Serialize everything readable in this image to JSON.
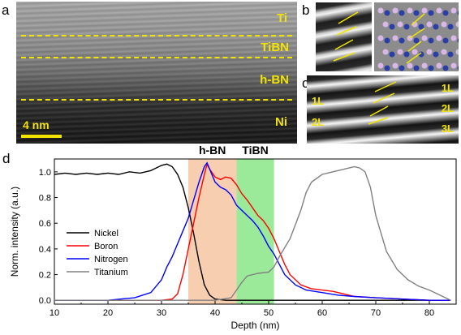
{
  "panels": {
    "a": {
      "letter": "a",
      "layers": [
        "Ti",
        "TiBN",
        "h-BN",
        "Ni"
      ],
      "scale_bar": "4 nm"
    },
    "b": {
      "letter": "b"
    },
    "c": {
      "letter": "c",
      "left_labels": [
        "1L",
        "2L"
      ],
      "right_labels": [
        "1L",
        "2L",
        "3L"
      ]
    },
    "d": {
      "letter": "d"
    }
  },
  "chart_data": {
    "type": "line",
    "title": "",
    "xlabel": "Depth (nm)",
    "ylabel": "Norm. intensity (a.u.)",
    "xlim": [
      10,
      85
    ],
    "ylim": [
      -0.03,
      1.1
    ],
    "xticks": [
      10,
      20,
      30,
      40,
      50,
      60,
      70,
      80
    ],
    "yticks": [
      0.0,
      0.2,
      0.4,
      0.6,
      0.8,
      1.0
    ],
    "region_labels": [
      {
        "text": "h-BN",
        "x_range": [
          35,
          44
        ],
        "color": "#f7c9a8"
      },
      {
        "text": "TiBN",
        "x_range": [
          44,
          51
        ],
        "color": "#8fe88f"
      }
    ],
    "legend_position": "bottom-left",
    "series": [
      {
        "name": "Nickel",
        "color": "#000000",
        "points": [
          [
            10,
            0.98
          ],
          [
            12,
            0.99
          ],
          [
            14,
            0.98
          ],
          [
            16,
            0.99
          ],
          [
            18,
            0.98
          ],
          [
            20,
            0.99
          ],
          [
            22,
            0.98
          ],
          [
            24,
            1.0
          ],
          [
            26,
            0.99
          ],
          [
            28,
            1.01
          ],
          [
            29,
            1.03
          ],
          [
            30,
            1.05
          ],
          [
            31,
            1.06
          ],
          [
            32,
            1.04
          ],
          [
            33,
            0.98
          ],
          [
            34,
            0.88
          ],
          [
            35,
            0.72
          ],
          [
            36,
            0.52
          ],
          [
            37,
            0.3
          ],
          [
            38,
            0.12
          ],
          [
            39,
            0.04
          ],
          [
            40,
            0.01
          ],
          [
            42,
            0.0
          ],
          [
            45,
            0.0
          ],
          [
            50,
            0.0
          ],
          [
            55,
            0.0
          ],
          [
            60,
            0.0
          ],
          [
            65,
            0.0
          ],
          [
            70,
            0.0
          ],
          [
            75,
            0.0
          ],
          [
            80,
            0.0
          ],
          [
            84,
            0.0
          ]
        ]
      },
      {
        "name": "Boron",
        "color": "#ff0000",
        "points": [
          [
            10,
            0.0
          ],
          [
            20,
            0.0
          ],
          [
            30,
            0.0
          ],
          [
            32,
            0.01
          ],
          [
            33,
            0.05
          ],
          [
            34,
            0.2
          ],
          [
            35,
            0.4
          ],
          [
            36,
            0.6
          ],
          [
            37,
            0.8
          ],
          [
            38,
            0.98
          ],
          [
            38.5,
            1.06
          ],
          [
            39,
            1.02
          ],
          [
            40,
            0.96
          ],
          [
            41,
            0.94
          ],
          [
            42,
            0.96
          ],
          [
            43,
            0.95
          ],
          [
            44,
            0.9
          ],
          [
            45,
            0.83
          ],
          [
            46,
            0.78
          ],
          [
            47,
            0.72
          ],
          [
            48,
            0.66
          ],
          [
            49,
            0.62
          ],
          [
            50,
            0.56
          ],
          [
            51,
            0.48
          ],
          [
            52,
            0.38
          ],
          [
            53,
            0.28
          ],
          [
            54,
            0.2
          ],
          [
            56,
            0.12
          ],
          [
            58,
            0.09
          ],
          [
            60,
            0.08
          ],
          [
            62,
            0.07
          ],
          [
            64,
            0.05
          ],
          [
            66,
            0.03
          ],
          [
            70,
            0.02
          ],
          [
            75,
            0.01
          ],
          [
            80,
            0.0
          ],
          [
            84,
            0.0
          ]
        ]
      },
      {
        "name": "Nitrogen",
        "color": "#0000ff",
        "points": [
          [
            10,
            0.0
          ],
          [
            20,
            0.0
          ],
          [
            25,
            0.02
          ],
          [
            28,
            0.06
          ],
          [
            30,
            0.16
          ],
          [
            31,
            0.26
          ],
          [
            32,
            0.34
          ],
          [
            33,
            0.44
          ],
          [
            34,
            0.54
          ],
          [
            35,
            0.64
          ],
          [
            36,
            0.78
          ],
          [
            37,
            0.92
          ],
          [
            38,
            1.04
          ],
          [
            38.5,
            1.07
          ],
          [
            39,
            1.02
          ],
          [
            40,
            0.92
          ],
          [
            41,
            0.88
          ],
          [
            42,
            0.86
          ],
          [
            43,
            0.82
          ],
          [
            44,
            0.74
          ],
          [
            45,
            0.7
          ],
          [
            46,
            0.66
          ],
          [
            47,
            0.62
          ],
          [
            48,
            0.57
          ],
          [
            49,
            0.5
          ],
          [
            50,
            0.42
          ],
          [
            51,
            0.36
          ],
          [
            52,
            0.28
          ],
          [
            53,
            0.2
          ],
          [
            55,
            0.12
          ],
          [
            57,
            0.08
          ],
          [
            60,
            0.06
          ],
          [
            63,
            0.04
          ],
          [
            66,
            0.03
          ],
          [
            70,
            0.02
          ],
          [
            75,
            0.01
          ],
          [
            80,
            0.0
          ],
          [
            84,
            0.0
          ]
        ]
      },
      {
        "name": "Titanium",
        "color": "#808080",
        "points": [
          [
            10,
            0.0
          ],
          [
            20,
            0.0
          ],
          [
            30,
            0.0
          ],
          [
            40,
            0.0
          ],
          [
            43,
            0.02
          ],
          [
            44,
            0.08
          ],
          [
            45,
            0.14
          ],
          [
            46,
            0.19
          ],
          [
            48,
            0.21
          ],
          [
            50,
            0.22
          ],
          [
            51,
            0.26
          ],
          [
            52,
            0.34
          ],
          [
            54,
            0.48
          ],
          [
            56,
            0.7
          ],
          [
            57,
            0.84
          ],
          [
            58,
            0.92
          ],
          [
            60,
            0.98
          ],
          [
            62,
            1.0
          ],
          [
            64,
            1.02
          ],
          [
            66,
            1.04
          ],
          [
            67,
            1.03
          ],
          [
            68,
            1.0
          ],
          [
            69,
            0.88
          ],
          [
            70,
            0.66
          ],
          [
            71,
            0.52
          ],
          [
            72,
            0.38
          ],
          [
            74,
            0.24
          ],
          [
            76,
            0.16
          ],
          [
            78,
            0.11
          ],
          [
            80,
            0.08
          ],
          [
            82,
            0.04
          ],
          [
            84,
            0.0
          ]
        ]
      }
    ]
  }
}
